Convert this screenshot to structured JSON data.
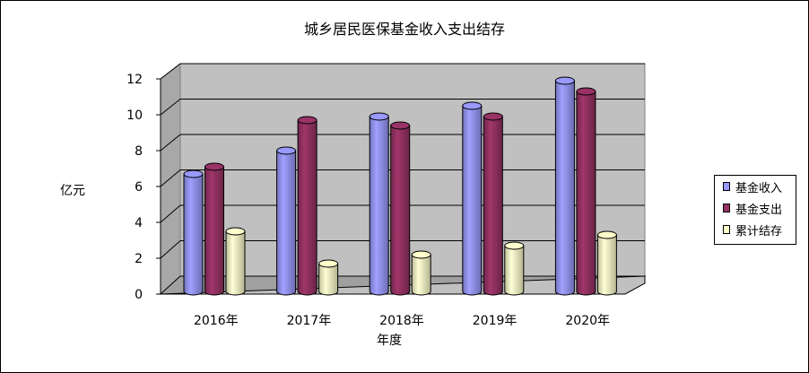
{
  "chart_data": {
    "type": "bar",
    "title": "城乡居民医保基金收入支出结存",
    "xlabel": "年度",
    "ylabel": "亿元",
    "categories": [
      "2016年",
      "2017年",
      "2018年",
      "2019年",
      "2020年"
    ],
    "ylim": [
      0,
      12
    ],
    "yticks": [
      "0",
      "2",
      "4",
      "6",
      "8",
      "10",
      "12"
    ],
    "grid": true,
    "legend_position": "right",
    "series": [
      {
        "name": "基金收入",
        "color": "#9999FF",
        "values": [
          6.5,
          7.8,
          9.7,
          10.3,
          11.7
        ]
      },
      {
        "name": "基金支出",
        "color": "#993366",
        "values": [
          6.9,
          9.5,
          9.2,
          9.7,
          11.1
        ]
      },
      {
        "name": "累计结存",
        "color": "#FFFFCC",
        "values": [
          3.3,
          1.5,
          2.0,
          2.5,
          3.1
        ]
      }
    ]
  }
}
